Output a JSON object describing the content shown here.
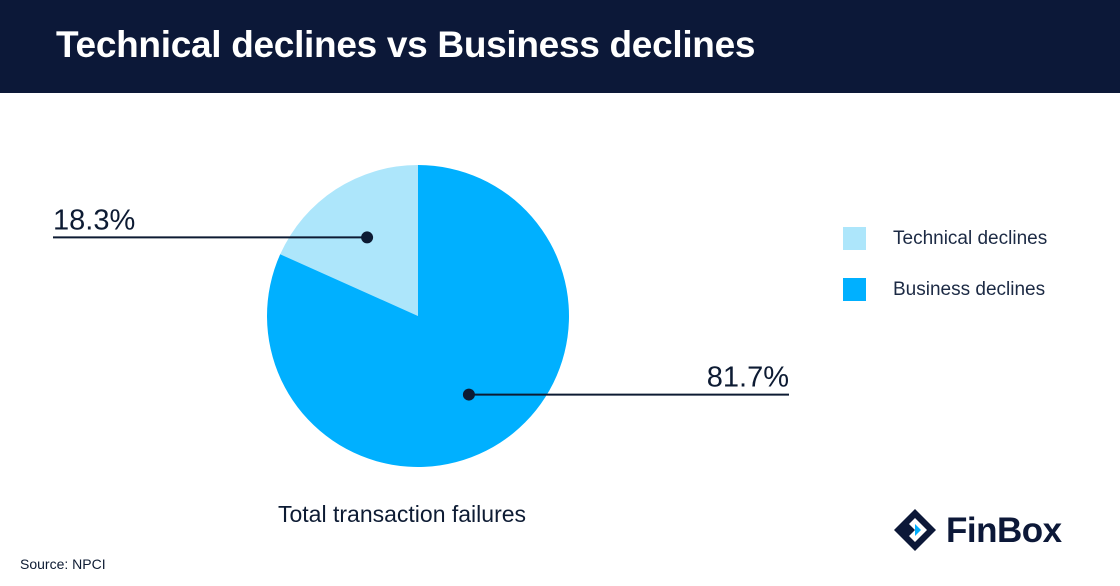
{
  "header": {
    "title": "Technical declines vs Business declines"
  },
  "chart_data": {
    "type": "pie",
    "categories": [
      "Technical declines",
      "Business declines"
    ],
    "values": [
      18.3,
      81.7
    ],
    "value_labels": [
      "18.3%",
      "81.7%"
    ],
    "colors": [
      "#ade6fb",
      "#00b0ff"
    ],
    "caption": "Total transaction failures",
    "legend_placement": "right"
  },
  "legend": {
    "items": [
      {
        "label": "Technical declines",
        "color": "#ade6fb"
      },
      {
        "label": "Business declines",
        "color": "#00b0ff"
      }
    ]
  },
  "footer": {
    "source": "Source: NPCI"
  },
  "brand": {
    "name": "FinBox",
    "icon": "finbox-logo-icon"
  }
}
